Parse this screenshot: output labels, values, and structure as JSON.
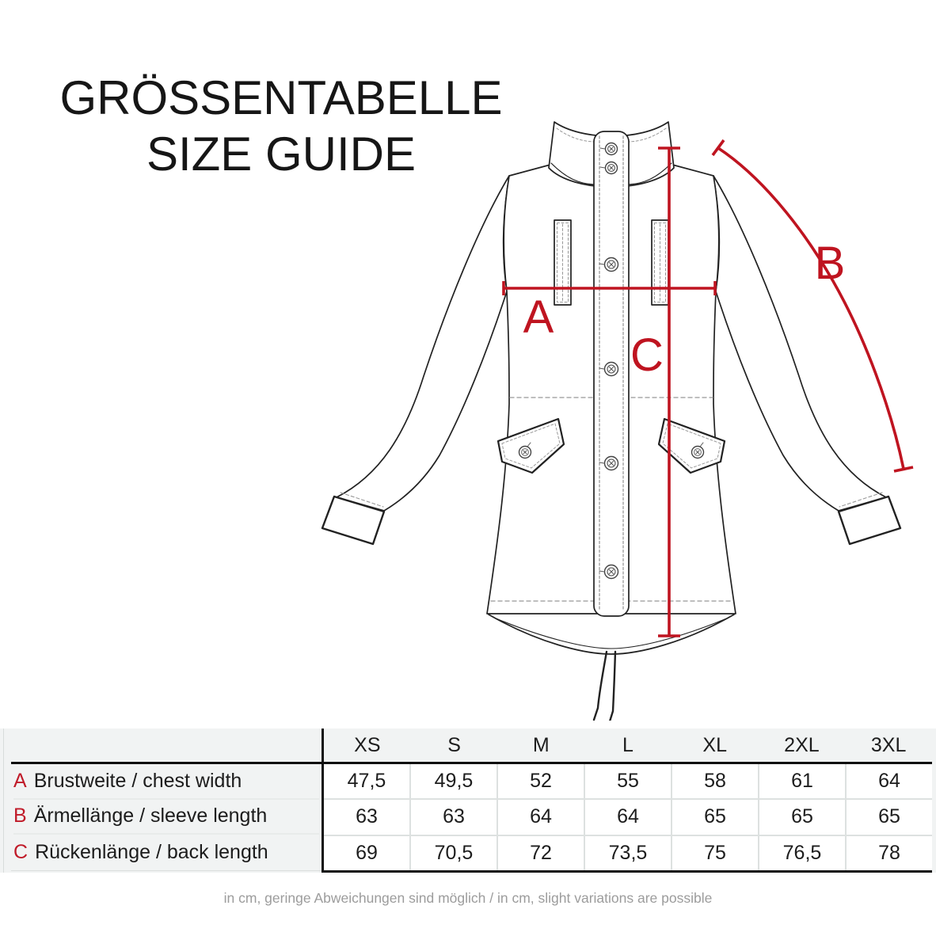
{
  "title": {
    "line1": "GRÖSSENTABELLE",
    "line2": "SIZE GUIDE"
  },
  "diagram": {
    "labels": {
      "a": "A",
      "b": "B",
      "c": "C"
    },
    "annotation_color": "#bf1420",
    "line_color": "#222222",
    "garment": "parka jacket technical sketch, front view"
  },
  "table": {
    "accent_color": "#c01b29",
    "band_background": "#f1f3f3",
    "sizes": [
      "XS",
      "S",
      "M",
      "L",
      "XL",
      "2XL",
      "3XL"
    ],
    "rows": [
      {
        "key": "A",
        "label": "Brustweite / chest width",
        "values": [
          "47,5",
          "49,5",
          "52",
          "55",
          "58",
          "61",
          "64"
        ]
      },
      {
        "key": "B",
        "label": "Ärmellänge / sleeve length",
        "values": [
          "63",
          "63",
          "64",
          "64",
          "65",
          "65",
          "65"
        ]
      },
      {
        "key": "C",
        "label": "Rückenlänge / back length",
        "values": [
          "69",
          "70,5",
          "72",
          "73,5",
          "75",
          "76,5",
          "78"
        ]
      }
    ]
  },
  "footer": {
    "note": "in cm, geringe Abweichungen sind möglich / in cm, slight variations are possible"
  }
}
